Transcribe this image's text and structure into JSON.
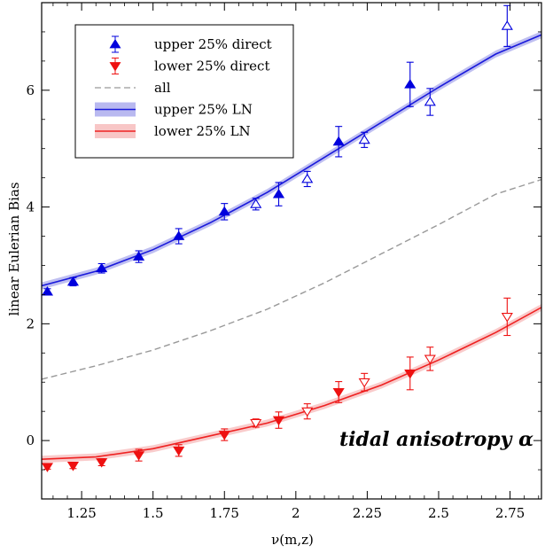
{
  "chart_data": {
    "type": "scatter",
    "title": "",
    "xlabel": "ν(m,z)",
    "ylabel": "linear Eulerian Bias",
    "xlim": [
      1.11,
      2.86
    ],
    "ylim": [
      -1.0,
      7.5
    ],
    "xticks": [
      1.25,
      1.5,
      1.75,
      2,
      2.25,
      2.5,
      2.75
    ],
    "xtick_labels": [
      "1.25",
      "1.5",
      "1.75",
      "2",
      "2.25",
      "2.5",
      "2.75"
    ],
    "yticks": [
      0,
      2,
      4,
      6
    ],
    "ytick_labels": [
      "0",
      "2",
      "4",
      "6"
    ],
    "grid": false,
    "legend_position": "top-left",
    "annotation": "tidal anisotropy α",
    "series": [
      {
        "name": "upper 25% direct",
        "kind": "points",
        "marker": "triangle-up",
        "color": "#0000dd",
        "x": [
          1.13,
          1.22,
          1.32,
          1.45,
          1.59,
          1.75,
          1.86,
          1.94,
          2.04,
          2.15,
          2.24,
          2.4,
          2.47,
          2.74
        ],
        "y": [
          2.55,
          2.72,
          2.95,
          3.15,
          3.5,
          3.92,
          4.05,
          4.22,
          4.48,
          5.12,
          5.15,
          6.1,
          5.8,
          7.1
        ],
        "err": [
          0.05,
          0.07,
          0.08,
          0.1,
          0.13,
          0.14,
          0.1,
          0.2,
          0.13,
          0.26,
          0.13,
          0.38,
          0.23,
          0.35
        ],
        "hollow": [
          false,
          false,
          false,
          false,
          false,
          false,
          true,
          false,
          true,
          false,
          true,
          false,
          true,
          true
        ]
      },
      {
        "name": "lower 25% direct",
        "kind": "points",
        "marker": "triangle-down",
        "color": "#ee1111",
        "x": [
          1.13,
          1.22,
          1.32,
          1.45,
          1.59,
          1.75,
          1.86,
          1.94,
          2.04,
          2.15,
          2.24,
          2.4,
          2.47,
          2.74
        ],
        "y": [
          -0.45,
          -0.43,
          -0.37,
          -0.25,
          -0.17,
          0.1,
          0.3,
          0.35,
          0.5,
          0.83,
          1.0,
          1.15,
          1.4,
          2.12
        ],
        "err": [
          0.04,
          0.05,
          0.06,
          0.1,
          0.1,
          0.1,
          0.07,
          0.14,
          0.13,
          0.18,
          0.15,
          0.28,
          0.2,
          0.32
        ],
        "hollow": [
          false,
          false,
          false,
          false,
          false,
          false,
          true,
          false,
          true,
          false,
          true,
          false,
          true,
          true
        ]
      },
      {
        "name": "all",
        "kind": "line",
        "style": "dashed",
        "color": "#999999",
        "x": [
          1.11,
          1.3,
          1.5,
          1.7,
          1.9,
          2.1,
          2.3,
          2.5,
          2.7,
          2.86
        ],
        "y": [
          1.05,
          1.28,
          1.55,
          1.88,
          2.25,
          2.7,
          3.2,
          3.7,
          4.22,
          4.47
        ]
      },
      {
        "name": "upper 25% LN",
        "kind": "band",
        "color": "#1a1adb",
        "band_color": "#8a8ae6",
        "x": [
          1.11,
          1.3,
          1.5,
          1.7,
          1.9,
          2.1,
          2.3,
          2.5,
          2.7,
          2.86
        ],
        "y": [
          2.65,
          2.9,
          3.27,
          3.73,
          4.25,
          4.85,
          5.45,
          6.05,
          6.62,
          6.95
        ],
        "band": 0.06
      },
      {
        "name": "lower 25% LN",
        "kind": "band",
        "color": "#ee2222",
        "band_color": "#f4a0a0",
        "x": [
          1.11,
          1.3,
          1.5,
          1.7,
          1.9,
          2.1,
          2.3,
          2.5,
          2.7,
          2.86
        ],
        "y": [
          -0.32,
          -0.28,
          -0.14,
          0.08,
          0.3,
          0.6,
          0.95,
          1.38,
          1.85,
          2.28
        ],
        "band": 0.06
      }
    ]
  }
}
